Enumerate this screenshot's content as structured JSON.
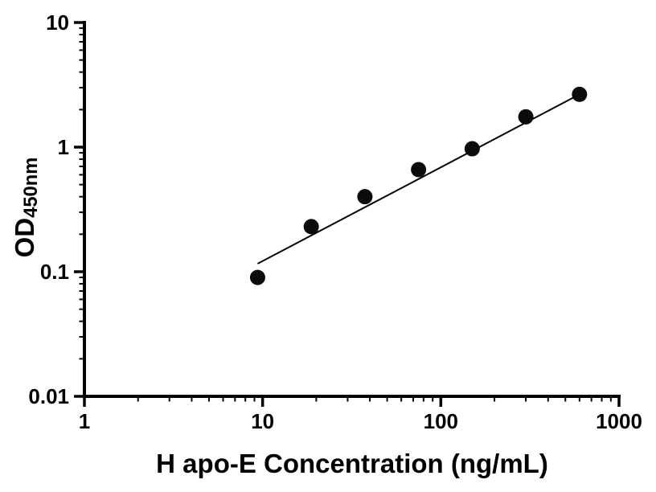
{
  "chart": {
    "background": "#ffffff",
    "foreground": "#000000"
  },
  "chart_data": {
    "type": "scatter",
    "title": "",
    "xlabel": "H apo-E Concentration (ng/mL)",
    "ylabel_main": "OD",
    "ylabel_sub": "450nm",
    "x_scale": "log",
    "y_scale": "log",
    "xlim": [
      1,
      1000
    ],
    "ylim": [
      0.01,
      10
    ],
    "xtick_labels": [
      "1",
      "10",
      "100",
      "1000"
    ],
    "ytick_labels": [
      "10",
      "1",
      "0.1",
      "0.01"
    ],
    "grid": "off",
    "legend": "none",
    "points": {
      "x": [
        9.375,
        18.75,
        37.5,
        75,
        150,
        300,
        600
      ],
      "y": [
        0.09,
        0.23,
        0.4,
        0.66,
        0.97,
        1.75,
        2.65
      ]
    },
    "fit_line": {
      "x": [
        9.375,
        600
      ],
      "y": [
        0.116,
        2.65
      ]
    },
    "marker_color": "#0b0b0b",
    "line_color": "#000000"
  }
}
